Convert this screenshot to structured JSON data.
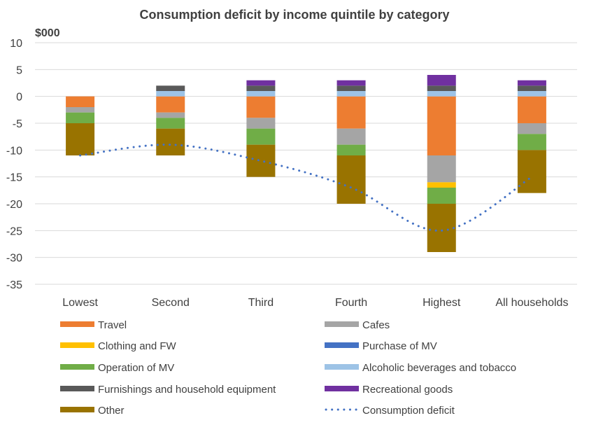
{
  "chart_data": {
    "type": "bar",
    "stacked": true,
    "title": "Consumption deficit by income quintile by category",
    "unit_label": "$000",
    "xlabel": "",
    "ylabel": "$000",
    "ylim": [
      -35,
      10
    ],
    "yticks": [
      10,
      5,
      0,
      -5,
      -10,
      -15,
      -20,
      -25,
      -30,
      -35
    ],
    "grid": true,
    "legend_position": "bottom",
    "categories": [
      "Lowest",
      "Second",
      "Third",
      "Fourth",
      "Highest",
      "All households"
    ],
    "series": [
      {
        "name": "Travel",
        "color": "#ED7D31",
        "values": [
          -2,
          -3,
          -4,
          -6,
          -11,
          -5
        ]
      },
      {
        "name": "Cafes",
        "color": "#A5A5A5",
        "values": [
          -1,
          -1,
          -2,
          -3,
          -5,
          -2
        ]
      },
      {
        "name": "Clothing and FW",
        "color": "#FFC000",
        "values": [
          0,
          0,
          0,
          0,
          -1,
          0
        ]
      },
      {
        "name": "Purchase of MV",
        "color": "#4472C4",
        "values": [
          0,
          0,
          0,
          0,
          0,
          0
        ]
      },
      {
        "name": "Operation of MV",
        "color": "#70AD47",
        "values": [
          -2,
          -2,
          -3,
          -2,
          -3,
          -3
        ]
      },
      {
        "name": "Alcoholic beverages and tobacco",
        "color": "#9DC3E6",
        "values": [
          0,
          1,
          1,
          1,
          1,
          1
        ]
      },
      {
        "name": "Furnishings and household equipment",
        "color": "#595959",
        "values": [
          0,
          1,
          1,
          1,
          1,
          1
        ]
      },
      {
        "name": "Recreational goods",
        "color": "#7030A0",
        "values": [
          0,
          0,
          1,
          1,
          2,
          1
        ]
      },
      {
        "name": "Other",
        "color": "#997300",
        "values": [
          -6,
          -5,
          -6,
          -9,
          -9,
          -8
        ]
      }
    ],
    "line_series": {
      "name": "Consumption deficit",
      "color": "#4472C4",
      "style": "dotted",
      "values": [
        -11,
        -9,
        -12,
        -17,
        -25,
        -15
      ]
    },
    "legend": [
      {
        "name": "Travel",
        "color": "#ED7D31",
        "kind": "bar"
      },
      {
        "name": "Cafes",
        "color": "#A5A5A5",
        "kind": "bar"
      },
      {
        "name": "Clothing and FW",
        "color": "#FFC000",
        "kind": "bar"
      },
      {
        "name": "Purchase of MV",
        "color": "#4472C4",
        "kind": "bar"
      },
      {
        "name": "Operation of MV",
        "color": "#70AD47",
        "kind": "bar"
      },
      {
        "name": "Alcoholic beverages and tobacco",
        "color": "#9DC3E6",
        "kind": "bar"
      },
      {
        "name": "Furnishings and household equipment",
        "color": "#595959",
        "kind": "bar"
      },
      {
        "name": "Recreational goods",
        "color": "#7030A0",
        "kind": "bar"
      },
      {
        "name": "Other",
        "color": "#997300",
        "kind": "bar"
      },
      {
        "name": "Consumption deficit",
        "color": "#4472C4",
        "kind": "line"
      }
    ]
  }
}
